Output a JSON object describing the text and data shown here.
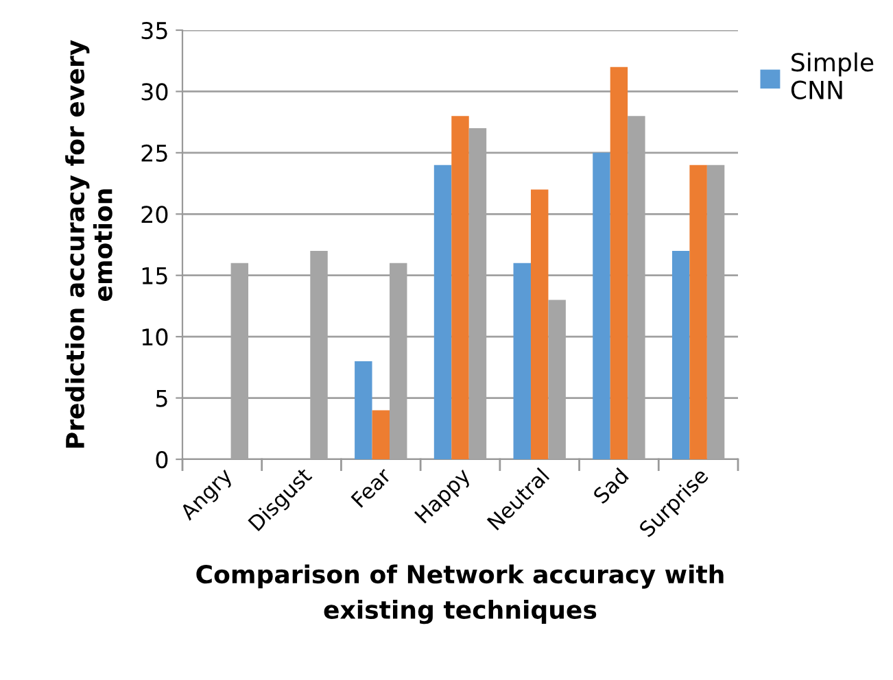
{
  "chart_data": {
    "type": "bar",
    "xlabel": "Comparison of Network accuracy with\nexisting techniques",
    "ylabel": "Prediction accuracy for every\nemotion",
    "categories": [
      "Angry",
      "Disgust",
      "Fear",
      "Happy",
      "Neutral",
      "Sad",
      "Surprise"
    ],
    "series": [
      {
        "name": "Simple CNN",
        "color": "#5b9bd5",
        "values": [
          0,
          0,
          8,
          24,
          16,
          25,
          17
        ]
      },
      {
        "color": "#ed7d31",
        "values": [
          0,
          0,
          4,
          28,
          22,
          32,
          24
        ]
      },
      {
        "color": "#a5a5a5",
        "values": [
          16,
          17,
          16,
          27,
          13,
          28,
          24
        ]
      }
    ],
    "ylim": [
      0,
      35
    ],
    "yticks": [
      0,
      5,
      10,
      15,
      20,
      25,
      30,
      35
    ],
    "grid": "y",
    "legend": "top right"
  }
}
